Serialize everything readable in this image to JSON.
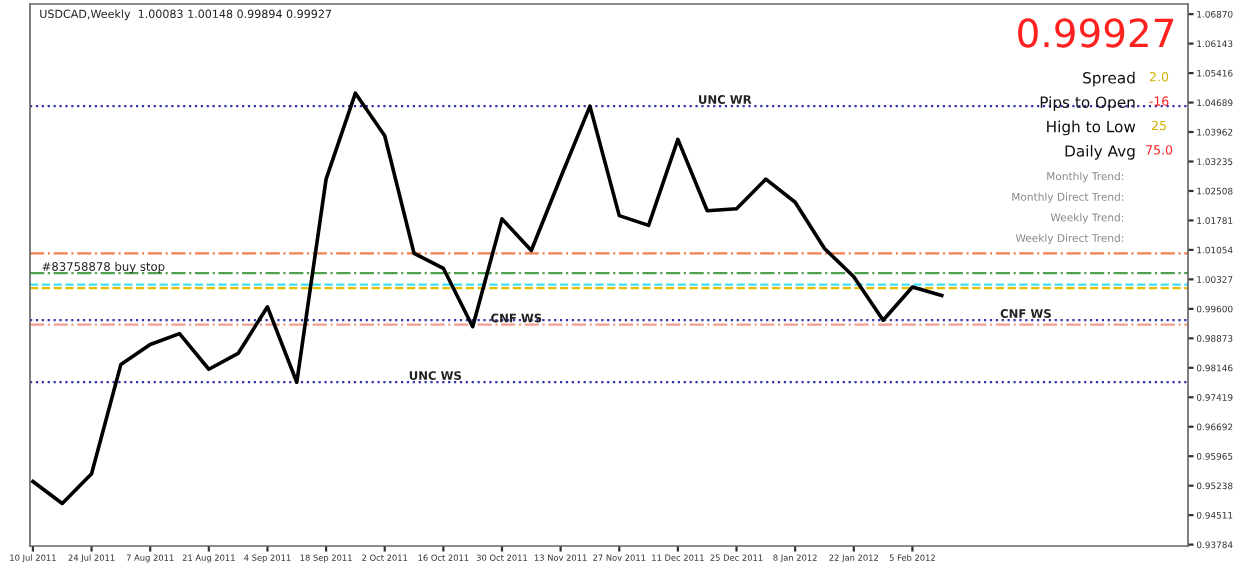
{
  "chart_data": {
    "type": "line",
    "title": "USDCAD,Weekly  1.00083 1.00148 0.99894 0.99927",
    "categories": [
      "10 Jul 2011",
      null,
      "24 Jul 2011",
      null,
      "7 Aug 2011",
      null,
      "21 Aug 2011",
      null,
      "4 Sep 2011",
      null,
      "18 Sep 2011",
      null,
      "2 Oct 2011",
      null,
      "16 Oct 2011",
      null,
      "30 Oct 2011",
      null,
      "13 Nov 2011",
      null,
      "27 Nov 2011",
      null,
      "11 Dec 2011",
      null,
      "25 Dec 2011",
      null,
      "8 Jan 2012",
      null,
      "22 Jan 2012",
      null,
      "5 Feb 2012",
      null
    ],
    "series": [
      {
        "color": "#000000",
        "values": [
          0.9534,
          0.948,
          0.9553,
          0.9823,
          0.9872,
          0.9899,
          0.9811,
          0.985,
          0.9965,
          0.9779,
          1.028,
          1.0492,
          1.0387,
          1.0097,
          1.006,
          0.9916,
          1.0182,
          1.0104,
          1.0284,
          1.046,
          1.019,
          1.0166,
          1.0378,
          1.0202,
          1.0207,
          1.028,
          1.0223,
          1.0109,
          1.0039,
          0.9932,
          1.0014,
          0.9993
        ]
      }
    ],
    "ylim": [
      0.9375,
      1.0712
    ],
    "yticks": [
      {
        "value": 1.0687,
        "label": "1.06870"
      },
      {
        "value": 1.06143,
        "label": "1.06143"
      },
      {
        "value": 1.05416,
        "label": "1.05416"
      },
      {
        "value": 1.04689,
        "label": "1.04689"
      },
      {
        "value": 1.03962,
        "label": "1.03962"
      },
      {
        "value": 1.03235,
        "label": "1.03235"
      },
      {
        "value": 1.02508,
        "label": "1.02508"
      },
      {
        "value": 1.01781,
        "label": "1.01781"
      },
      {
        "value": 1.01054,
        "label": "1.01054"
      },
      {
        "value": 1.00327,
        "label": "1.00327"
      },
      {
        "value": 0.996,
        "label": "0.99600"
      },
      {
        "value": 0.98873,
        "label": "0.98873"
      },
      {
        "value": 0.98146,
        "label": "0.98146"
      },
      {
        "value": 0.97419,
        "label": "0.97419"
      },
      {
        "value": 0.96692,
        "label": "0.96692"
      },
      {
        "value": 0.95965,
        "label": "0.95965"
      },
      {
        "value": 0.95238,
        "label": "0.95238"
      },
      {
        "value": 0.94511,
        "label": "0.94511"
      },
      {
        "value": 0.93784,
        "label": "0.93784"
      }
    ],
    "ref_lines": [
      {
        "axis": "y",
        "value": 1.046,
        "label": "UNC WR",
        "color": "#3333aa",
        "line_style": "dotted"
      },
      {
        "axis": "y",
        "value": 1.0097,
        "label": null,
        "color": "#f08050",
        "line_style": "dashdot"
      },
      {
        "axis": "y",
        "value": 1.0048,
        "label": "#83758878 buy stop",
        "color": "#50a050",
        "line_style": "dashdot"
      },
      {
        "axis": "y",
        "value": 1.002,
        "label": null,
        "color": "#40e0f0",
        "line_style": "dashed"
      },
      {
        "axis": "y",
        "value": 1.0011,
        "label": null,
        "color": "#e0c000",
        "line_style": "dashed"
      },
      {
        "axis": "y",
        "value": 0.9932,
        "label": "CNF WS",
        "color": "#3333aa",
        "line_style": "dotted"
      },
      {
        "axis": "y",
        "value": 0.9921,
        "label": "CNF WS",
        "color": "#f0a090",
        "line_style": "dashdot"
      },
      {
        "axis": "y",
        "value": 0.9779,
        "label": "UNC WS",
        "color": "#3333aa",
        "line_style": "dotted"
      }
    ],
    "annotations": [
      "0.99927",
      "Spread",
      "2.0",
      "Pips to Open",
      "-16",
      "High to Low",
      "25",
      "Daily Avg",
      "75.0",
      "Monthly Trend:",
      "Monthly Direct Trend:",
      "Weekly Trend:",
      "Weekly Direct Trend:"
    ],
    "grid": false,
    "legend": false
  }
}
